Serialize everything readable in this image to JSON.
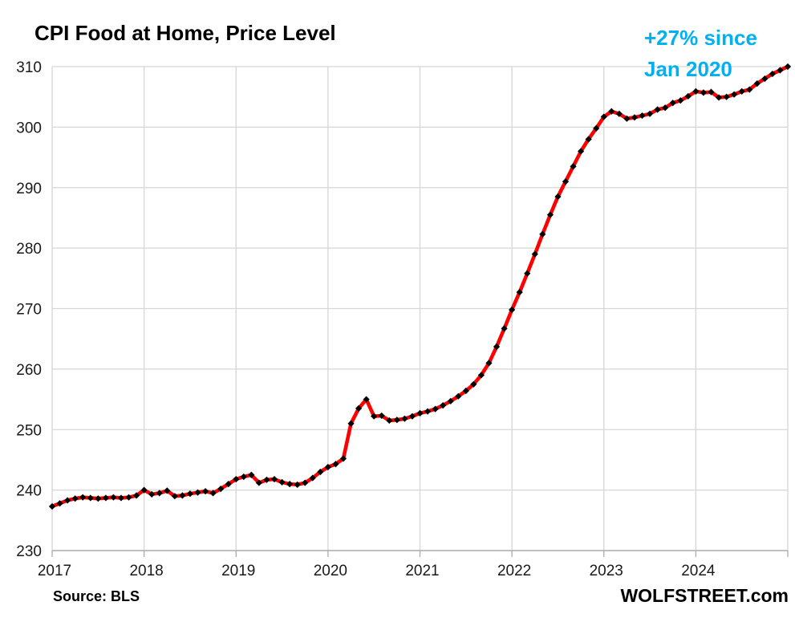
{
  "chart_data": {
    "type": "line",
    "title": "CPI Food at Home, Price Level",
    "annotation_lines": [
      "+27% since",
      "Jan 2020"
    ],
    "annotation_color": "#00B0F0",
    "source": "Source: BLS",
    "watermark": "WOLFSTREET.com",
    "xlabel": "",
    "ylabel": "",
    "ylim": [
      230,
      310
    ],
    "y_ticks": [
      230,
      240,
      250,
      260,
      270,
      280,
      290,
      300,
      310
    ],
    "x_tick_labels": [
      "2017",
      "2018",
      "2019",
      "2020",
      "2021",
      "2022",
      "2023",
      "2024"
    ],
    "x_start": "2017-01",
    "x_end": "2025-01",
    "frequency": "monthly",
    "grid": true,
    "legend": "none",
    "line_color": "#FE0000",
    "marker_color": "#000000",
    "grid_color": "#D6D6D6",
    "axis_color": "#ABABAB",
    "series": [
      {
        "name": "CPI Food at Home index",
        "values": [
          237.3,
          237.8,
          238.3,
          238.6,
          238.8,
          238.7,
          238.6,
          238.7,
          238.8,
          238.7,
          238.8,
          239.1,
          240.0,
          239.3,
          239.5,
          239.9,
          239.0,
          239.1,
          239.4,
          239.6,
          239.8,
          239.5,
          240.2,
          241.0,
          241.8,
          242.2,
          242.5,
          241.2,
          241.7,
          241.8,
          241.3,
          241.0,
          240.9,
          241.2,
          242.0,
          243.0,
          243.8,
          244.3,
          245.2,
          251.0,
          253.5,
          255.0,
          252.2,
          252.3,
          251.5,
          251.6,
          251.8,
          252.2,
          252.7,
          253.0,
          253.4,
          254.0,
          254.7,
          255.5,
          256.4,
          257.5,
          259.0,
          261.0,
          263.7,
          266.7,
          269.8,
          272.7,
          275.8,
          279.0,
          282.3,
          285.5,
          288.5,
          291.0,
          293.5,
          296.0,
          298.0,
          299.8,
          301.7,
          302.6,
          302.2,
          301.4,
          301.6,
          301.9,
          302.2,
          302.9,
          303.2,
          304.0,
          304.4,
          305.1,
          305.9,
          305.7,
          305.8,
          304.9,
          305.0,
          305.4,
          305.9,
          306.2,
          307.2,
          308.0,
          308.8,
          309.4,
          310.0
        ]
      }
    ]
  }
}
